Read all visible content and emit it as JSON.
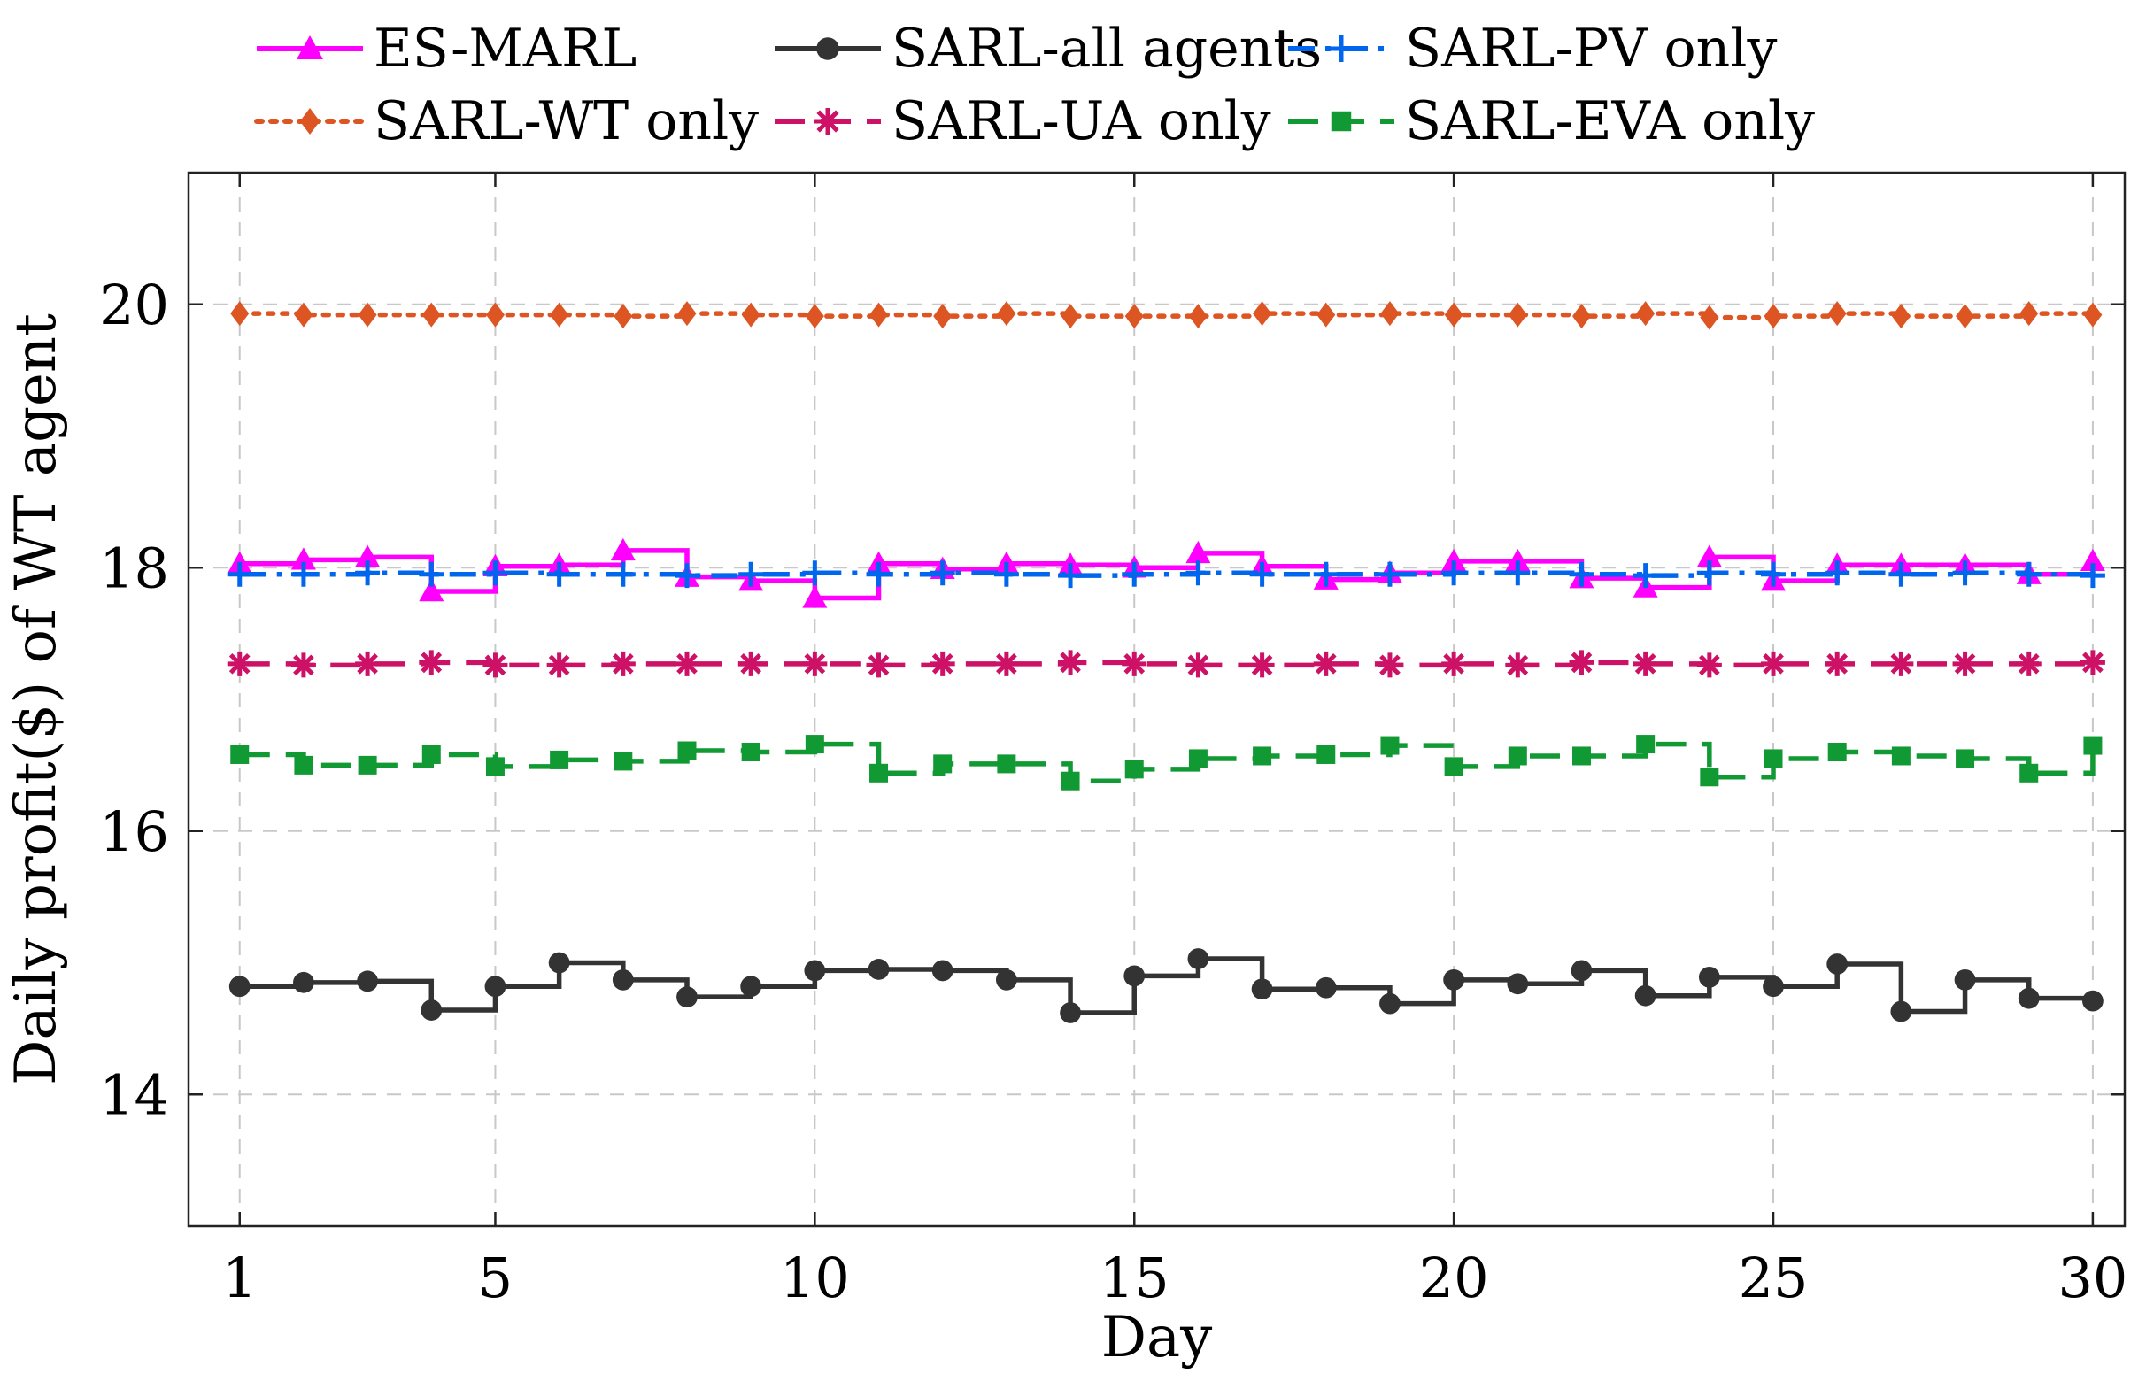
{
  "chart_data": {
    "type": "line",
    "step": true,
    "xlabel": "Day",
    "ylabel": "Daily profit($) of WT agent",
    "xlim": [
      0.2,
      30.5
    ],
    "ylim": [
      13,
      21
    ],
    "xticks": [
      1,
      5,
      10,
      15,
      20,
      25,
      30
    ],
    "yticks": [
      14,
      16,
      18,
      20
    ],
    "grid": true,
    "legend_position": "top",
    "x": [
      1,
      2,
      3,
      4,
      5,
      6,
      7,
      8,
      9,
      10,
      11,
      12,
      13,
      14,
      15,
      16,
      17,
      18,
      19,
      20,
      21,
      22,
      23,
      24,
      25,
      26,
      27,
      28,
      29,
      30
    ],
    "series": [
      {
        "name": "ES-MARL",
        "color": "#ff00ff",
        "marker": "triangle",
        "dash": "solid",
        "values": [
          18.03,
          18.06,
          18.08,
          17.82,
          18.01,
          18.02,
          18.13,
          17.93,
          17.9,
          17.77,
          18.03,
          17.99,
          18.03,
          18.02,
          18.0,
          18.11,
          18.01,
          17.91,
          17.96,
          18.05,
          18.05,
          17.92,
          17.85,
          18.08,
          17.9,
          18.02,
          18.02,
          18.02,
          17.95,
          18.05
        ]
      },
      {
        "name": "SARL-all agents",
        "color": "#333333",
        "marker": "circle",
        "dash": "solid",
        "values": [
          14.82,
          14.85,
          14.86,
          14.64,
          14.82,
          15.0,
          14.87,
          14.74,
          14.82,
          14.94,
          14.95,
          14.94,
          14.87,
          14.62,
          14.9,
          15.03,
          14.8,
          14.81,
          14.69,
          14.87,
          14.84,
          14.94,
          14.75,
          14.89,
          14.82,
          14.99,
          14.63,
          14.87,
          14.73,
          14.71
        ]
      },
      {
        "name": "SARL-PV only",
        "color": "#0066ee",
        "marker": "plus",
        "dash": "dashdot",
        "values": [
          17.95,
          17.95,
          17.96,
          17.95,
          17.96,
          17.95,
          17.95,
          17.94,
          17.95,
          17.96,
          17.95,
          17.96,
          17.95,
          17.94,
          17.95,
          17.96,
          17.95,
          17.95,
          17.95,
          17.96,
          17.96,
          17.95,
          17.94,
          17.96,
          17.95,
          17.96,
          17.95,
          17.96,
          17.95,
          17.94
        ]
      },
      {
        "name": "SARL-WT only",
        "color": "#dd5522",
        "marker": "diamond",
        "dash": "dotted",
        "values": [
          19.93,
          19.92,
          19.92,
          19.92,
          19.92,
          19.92,
          19.91,
          19.93,
          19.92,
          19.91,
          19.92,
          19.91,
          19.93,
          19.91,
          19.91,
          19.91,
          19.93,
          19.92,
          19.93,
          19.92,
          19.92,
          19.91,
          19.93,
          19.9,
          19.91,
          19.93,
          19.91,
          19.91,
          19.93,
          19.92
        ]
      },
      {
        "name": "SARL-UA only",
        "color": "#cc1166",
        "marker": "asterisk",
        "dash": "dashed",
        "values": [
          17.27,
          17.26,
          17.27,
          17.28,
          17.26,
          17.26,
          17.27,
          17.27,
          17.27,
          17.27,
          17.26,
          17.27,
          17.27,
          17.28,
          17.27,
          17.26,
          17.26,
          17.27,
          17.26,
          17.27,
          17.26,
          17.28,
          17.27,
          17.26,
          17.27,
          17.27,
          17.27,
          17.27,
          17.27,
          17.28
        ]
      },
      {
        "name": "SARL-EVA only",
        "color": "#119933",
        "marker": "square",
        "dash": "dashed",
        "values": [
          16.58,
          16.5,
          16.5,
          16.58,
          16.49,
          16.54,
          16.53,
          16.61,
          16.6,
          16.66,
          16.44,
          16.51,
          16.51,
          16.38,
          16.47,
          16.55,
          16.57,
          16.58,
          16.65,
          16.49,
          16.57,
          16.57,
          16.66,
          16.41,
          16.55,
          16.6,
          16.57,
          16.55,
          16.44,
          16.65
        ]
      }
    ]
  }
}
